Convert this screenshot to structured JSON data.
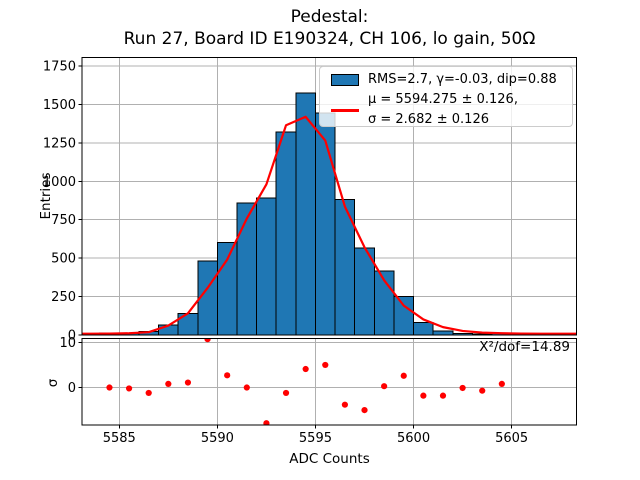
{
  "title": {
    "line1": "Pedestal:",
    "line2": "Run 27, Board ID E190324, CH 106, lo gain, 50Ω"
  },
  "legend": {
    "hist_label": "RMS=2.7, γ=-0.03, dip=0.88",
    "fit_label_line1": "μ = 5594.275 ± 0.126,",
    "fit_label_line2": "σ = 2.682 ± 0.126"
  },
  "annotation": {
    "chi2_dof": "X²/dof=14.89"
  },
  "axis_labels": {
    "main_y": "Entries",
    "residual_y": "σ",
    "x": "ADC Counts"
  },
  "colors": {
    "bar_fill": "#1f77b4",
    "bar_edge": "#000000",
    "fit_line": "#ff0000",
    "residual_marker": "#ff0000",
    "grid": "#b0b0b0",
    "spine": "#000000"
  },
  "chart_data": [
    {
      "type": "bar",
      "subplot": "main-histogram",
      "title": "Pedestal: Run 27, Board ID E190324, CH 106, lo gain, 50Ω",
      "xlabel": "",
      "ylabel": "Entries",
      "xlim": [
        5583.1,
        5608.3
      ],
      "ylim": [
        0,
        1806
      ],
      "x_ticks": [
        5585,
        5590,
        5595,
        5600,
        5605
      ],
      "y_ticks": [
        0,
        250,
        500,
        750,
        1000,
        1250,
        1500,
        1750
      ],
      "grid": true,
      "legend_position": "upper right",
      "bin_edges": [
        5584,
        5585,
        5586,
        5587,
        5588,
        5589,
        5590,
        5591,
        5592,
        5593,
        5594,
        5595,
        5596,
        5597,
        5598,
        5599,
        5600,
        5601,
        5602,
        5603,
        5604,
        5605
      ],
      "counts": [
        13,
        10,
        21,
        65,
        140,
        480,
        600,
        860,
        890,
        1320,
        1575,
        1445,
        880,
        565,
        415,
        250,
        80,
        25,
        7,
        3,
        7
      ],
      "fit_line": {
        "label": "μ = 5594.275 ± 0.126, σ = 2.682 ± 0.126",
        "mu": 5594.275,
        "mu_err": 0.126,
        "sigma": 2.682,
        "sigma_err": 0.126,
        "x": [
          5583.1,
          5583.5,
          5584.5,
          5585.5,
          5586.5,
          5587.5,
          5588.5,
          5589.5,
          5590.5,
          5591.5,
          5592.5,
          5593.5,
          5594.5,
          5595.5,
          5596.5,
          5597.5,
          5598.5,
          5599.5,
          5600.5,
          5601.5,
          5602.5,
          5603.5,
          5604.5,
          5605.5,
          5606.5,
          5607.5,
          5608.3
        ],
        "y": [
          7,
          7,
          8,
          10,
          17,
          60,
          140,
          305,
          490,
          757,
          980,
          1365,
          1420,
          1265,
          835,
          570,
          355,
          190,
          100,
          50,
          25,
          14,
          10,
          8,
          7,
          7,
          7
        ]
      }
    },
    {
      "type": "scatter",
      "subplot": "fit-residuals",
      "xlabel": "ADC Counts",
      "ylabel": "σ",
      "xlim": [
        5583.1,
        5608.3
      ],
      "ylim": [
        -8.3,
        10.9
      ],
      "x_ticks": [
        5585,
        5590,
        5595,
        5600,
        5605
      ],
      "y_ticks": [
        0,
        10
      ],
      "grid": true,
      "annotation": "X²/dof=14.89",
      "x": [
        5584.5,
        5585.5,
        5586.5,
        5587.5,
        5588.5,
        5589.5,
        5590.5,
        5591.5,
        5592.5,
        5593.5,
        5594.5,
        5595.5,
        5596.5,
        5597.5,
        5598.5,
        5599.5,
        5600.5,
        5601.5,
        5602.5,
        5603.5,
        5604.5
      ],
      "y": [
        0,
        -0.2,
        -1.2,
        0.8,
        1.1,
        10.7,
        2.7,
        0,
        -7.9,
        -1.2,
        4.1,
        5.0,
        -3.8,
        -5.0,
        0.3,
        2.6,
        -1.8,
        -1.8,
        -0.1,
        -0.7,
        0.8
      ]
    }
  ]
}
